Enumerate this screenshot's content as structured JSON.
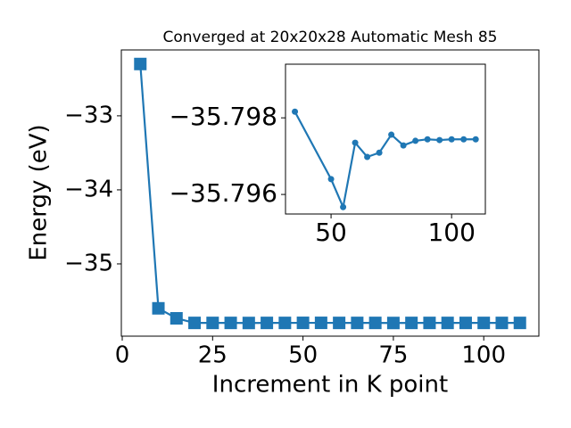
{
  "chart_data": [
    {
      "type": "line",
      "title": "Converged at 20x20x28 Automatic Mesh 85",
      "x_label": "Increment in K point",
      "y_label": "Energy (eV)",
      "x": [
        5,
        10,
        15,
        20,
        25,
        30,
        35,
        40,
        45,
        50,
        55,
        60,
        65,
        70,
        75,
        80,
        85,
        90,
        95,
        100,
        105,
        110
      ],
      "series": [
        {
          "color": "#1f77b4",
          "marker": "square",
          "values": [
            -32.3,
            -35.6,
            -35.735,
            -35.797,
            -35.797,
            -35.797,
            -35.798,
            -35.797,
            -35.797,
            -35.796,
            -35.796,
            -35.797,
            -35.797,
            -35.797,
            -35.798,
            -35.797,
            -35.797,
            -35.797,
            -35.797,
            -35.797,
            -35.797,
            -35.797
          ]
        }
      ],
      "xlim": [
        -0.25,
        115.25
      ],
      "ylim": [
        -35.976,
        -32.11
      ],
      "xticks": [
        0,
        25,
        50,
        75,
        100
      ],
      "yticks": [
        {
          "value": -35,
          "label": "−35"
        },
        {
          "value": -34,
          "label": "−34"
        },
        {
          "value": -33,
          "label": "−33"
        }
      ]
    },
    {
      "type": "line",
      "x": [
        35,
        50,
        55,
        60,
        65,
        70,
        75,
        80,
        85,
        90,
        95,
        100,
        105,
        110
      ],
      "series": [
        {
          "color": "#1f77b4",
          "marker": "circle",
          "values": [
            -35.79816,
            -35.7964,
            -35.79567,
            -35.79735,
            -35.79698,
            -35.79709,
            -35.79756,
            -35.79728,
            -35.7974,
            -35.79744,
            -35.79742,
            -35.79744,
            -35.79744,
            -35.79744
          ]
        }
      ],
      "xlim": [
        31.1,
        114.0
      ],
      "ylim": [
        -35.79549,
        -35.7994
      ],
      "xticks": [
        50,
        100
      ],
      "yticks": [
        {
          "value": -35.798,
          "label": "−35.798"
        },
        {
          "value": -35.796,
          "label": "−35.796"
        }
      ]
    }
  ]
}
